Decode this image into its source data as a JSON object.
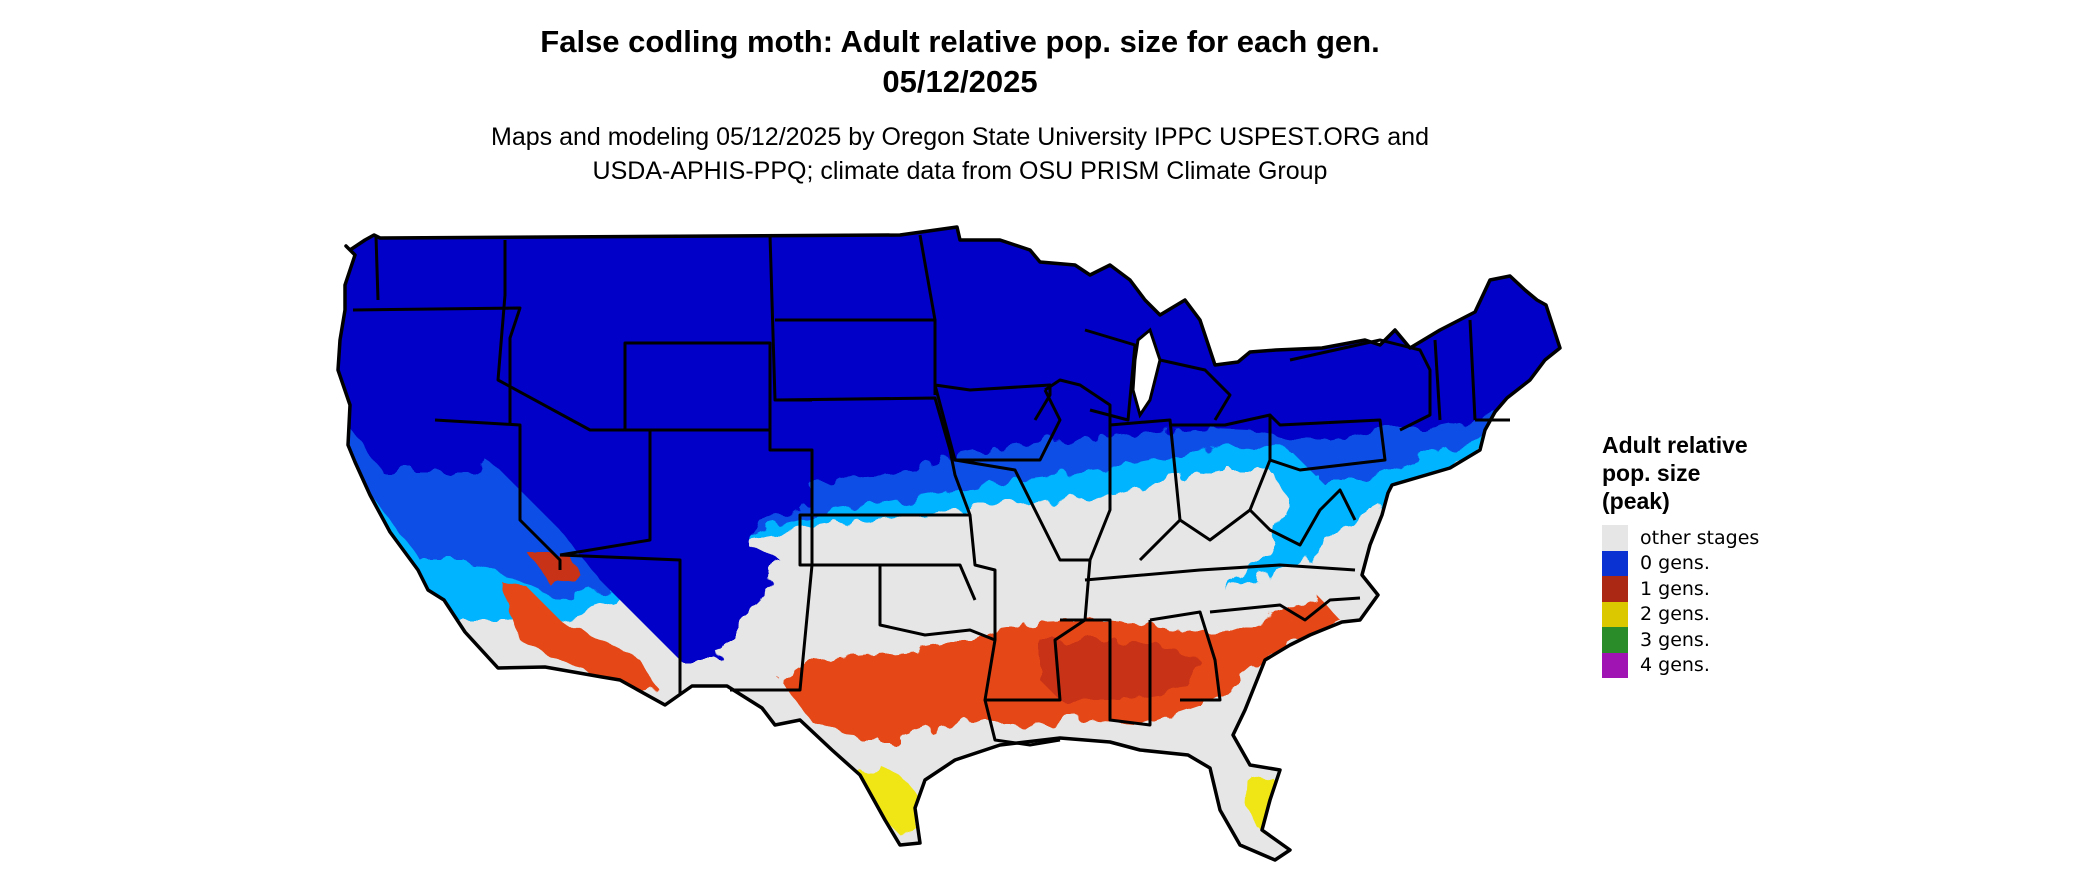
{
  "title_line1": "False codling moth: Adult relative pop. size for each gen.",
  "title_line2": "05/12/2025",
  "subtitle_line1": "Maps and modeling 05/12/2025 by Oregon State University IPPC USPEST.ORG and",
  "subtitle_line2": "USDA-APHIS-PPQ; climate data from OSU PRISM Climate Group",
  "legend": {
    "title_lines": [
      "Adult relative",
      "pop. size",
      "(peak)"
    ],
    "items": [
      {
        "label": "other stages",
        "color": "#e6e6e6"
      },
      {
        "label": "0 gens.",
        "color": "#0a32d2"
      },
      {
        "label": "1 gens.",
        "color": "#aa2814"
      },
      {
        "label": "2 gens.",
        "color": "#dcc800"
      },
      {
        "label": "3 gens.",
        "color": "#2a8c28"
      },
      {
        "label": "4 gens.",
        "color": "#a014b4"
      }
    ]
  },
  "map_colors": {
    "land_other": "#e6e6e6",
    "gen0_dark": "#0000c8",
    "gen0_mid": "#0a50e6",
    "gen0_light": "#00b4ff",
    "gen1": "#e64614",
    "gen1_dark": "#c83214",
    "gen2": "#f0e614",
    "gen3": "#28a028",
    "border": "#000000",
    "background": "#ffffff"
  }
}
